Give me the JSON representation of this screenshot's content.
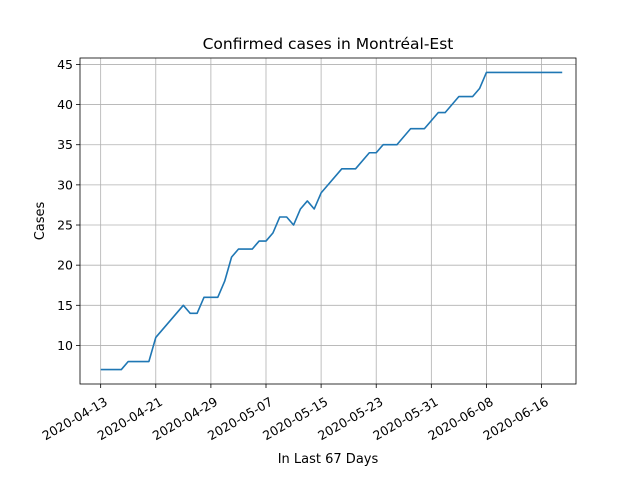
{
  "chart_data": {
    "type": "line",
    "title": "Confirmed cases in Montréal-Est",
    "xlabel": "In Last 67 Days",
    "ylabel": "Cases",
    "x_ticks": [
      "2020-04-13",
      "2020-04-21",
      "2020-04-29",
      "2020-05-07",
      "2020-05-15",
      "2020-05-23",
      "2020-05-31",
      "2020-06-08",
      "2020-06-16"
    ],
    "y_ticks": [
      10,
      15,
      20,
      25,
      30,
      35,
      40,
      45
    ],
    "ylim": [
      5.2,
      45.8
    ],
    "xlim": [
      "2020-04-10",
      "2020-06-21"
    ],
    "grid": true,
    "series": [
      {
        "color": "#1f77b4",
        "points": [
          {
            "x": "2020-04-13",
            "y": 7
          },
          {
            "x": "2020-04-16",
            "y": 7
          },
          {
            "x": "2020-04-17",
            "y": 8
          },
          {
            "x": "2020-04-20",
            "y": 8
          },
          {
            "x": "2020-04-21",
            "y": 11
          },
          {
            "x": "2020-04-25",
            "y": 15
          },
          {
            "x": "2020-04-26",
            "y": 14
          },
          {
            "x": "2020-04-27",
            "y": 14
          },
          {
            "x": "2020-04-28",
            "y": 16
          },
          {
            "x": "2020-04-30",
            "y": 16
          },
          {
            "x": "2020-05-01",
            "y": 18
          },
          {
            "x": "2020-05-02",
            "y": 21
          },
          {
            "x": "2020-05-03",
            "y": 22
          },
          {
            "x": "2020-05-05",
            "y": 22
          },
          {
            "x": "2020-05-06",
            "y": 23
          },
          {
            "x": "2020-05-07",
            "y": 23
          },
          {
            "x": "2020-05-08",
            "y": 24
          },
          {
            "x": "2020-05-09",
            "y": 26
          },
          {
            "x": "2020-05-10",
            "y": 26
          },
          {
            "x": "2020-05-11",
            "y": 25
          },
          {
            "x": "2020-05-12",
            "y": 27
          },
          {
            "x": "2020-05-13",
            "y": 28
          },
          {
            "x": "2020-05-14",
            "y": 27
          },
          {
            "x": "2020-05-15",
            "y": 29
          },
          {
            "x": "2020-05-18",
            "y": 32
          },
          {
            "x": "2020-05-20",
            "y": 32
          },
          {
            "x": "2020-05-22",
            "y": 34
          },
          {
            "x": "2020-05-23",
            "y": 34
          },
          {
            "x": "2020-05-24",
            "y": 35
          },
          {
            "x": "2020-05-26",
            "y": 35
          },
          {
            "x": "2020-05-28",
            "y": 37
          },
          {
            "x": "2020-05-30",
            "y": 37
          },
          {
            "x": "2020-06-01",
            "y": 39
          },
          {
            "x": "2020-06-02",
            "y": 39
          },
          {
            "x": "2020-06-04",
            "y": 41
          },
          {
            "x": "2020-06-06",
            "y": 41
          },
          {
            "x": "2020-06-07",
            "y": 42
          },
          {
            "x": "2020-06-08",
            "y": 44
          },
          {
            "x": "2020-06-19",
            "y": 44
          }
        ]
      }
    ]
  }
}
